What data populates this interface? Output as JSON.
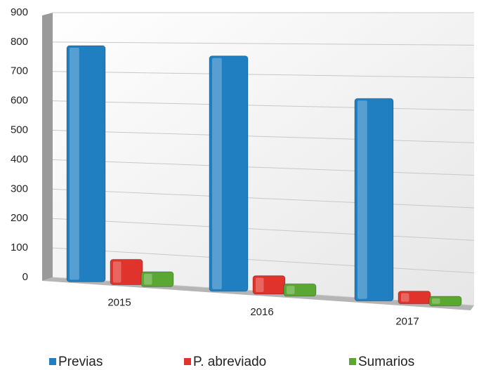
{
  "chart_data": {
    "type": "bar",
    "categories": [
      "2015",
      "2016",
      "2017"
    ],
    "series": [
      {
        "name": "Previas",
        "color": "#1f7fc0",
        "values": [
          800,
          770,
          640
        ]
      },
      {
        "name": "P. abreviado",
        "color": "#e0332b",
        "values": [
          85,
          60,
          40
        ]
      },
      {
        "name": "Sumarios",
        "color": "#5aa832",
        "values": [
          50,
          40,
          30
        ]
      }
    ],
    "ylim": [
      0,
      900
    ],
    "yticks": [
      0,
      100,
      200,
      300,
      400,
      500,
      600,
      700,
      800,
      900
    ],
    "grid": true
  }
}
